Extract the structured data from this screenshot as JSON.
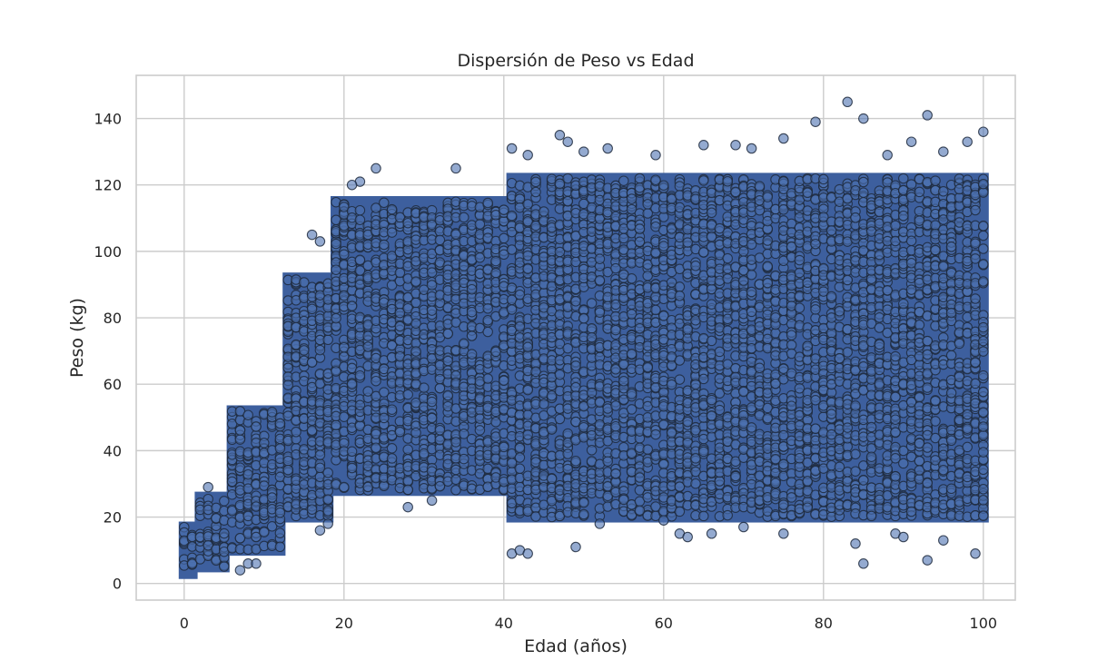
{
  "chart_data": {
    "type": "scatter",
    "title": "Dispersión de Peso vs Edad",
    "xlabel": "Edad (años)",
    "ylabel": "Peso (kg)",
    "xlim": [
      -6,
      104
    ],
    "ylim": [
      -5,
      153
    ],
    "grid": true,
    "legend": "none",
    "colors": {
      "marker_fill": "#4c72b0",
      "marker_edge": "#1f2a3d",
      "dense_core": "#3d5f9e",
      "grid": "#cccccc",
      "text": "#262626"
    },
    "marker_alpha": 0.6,
    "x_ticks": [
      0,
      20,
      40,
      60,
      80,
      100
    ],
    "x_tick_labels": [
      "0",
      "20",
      "40",
      "60",
      "80",
      "100"
    ],
    "y_ticks": [
      0,
      20,
      40,
      60,
      80,
      100,
      120,
      140
    ],
    "y_tick_labels": [
      "0",
      "20",
      "40",
      "60",
      "80",
      "100",
      "120",
      "140"
    ],
    "age_bands": [
      {
        "x_range": [
          0,
          1
        ],
        "y_range": [
          3,
          17
        ]
      },
      {
        "x_range": [
          2,
          5
        ],
        "y_range": [
          5,
          26
        ]
      },
      {
        "x_range": [
          6,
          12
        ],
        "y_range": [
          10,
          52
        ]
      },
      {
        "x_range": [
          13,
          18
        ],
        "y_range": [
          20,
          92
        ]
      },
      {
        "x_range": [
          19,
          40
        ],
        "y_range": [
          28,
          115
        ]
      },
      {
        "x_range": [
          41,
          100
        ],
        "y_range": [
          20,
          122
        ]
      }
    ],
    "outliers": [
      {
        "x": 83,
        "y": 145
      },
      {
        "x": 85,
        "y": 140
      },
      {
        "x": 79,
        "y": 139
      },
      {
        "x": 93,
        "y": 141
      },
      {
        "x": 100,
        "y": 136
      },
      {
        "x": 47,
        "y": 135
      },
      {
        "x": 48,
        "y": 133
      },
      {
        "x": 41,
        "y": 131
      },
      {
        "x": 50,
        "y": 130
      },
      {
        "x": 53,
        "y": 131
      },
      {
        "x": 75,
        "y": 134
      },
      {
        "x": 65,
        "y": 132
      },
      {
        "x": 69,
        "y": 132
      },
      {
        "x": 71,
        "y": 131
      },
      {
        "x": 98,
        "y": 133
      },
      {
        "x": 91,
        "y": 133
      },
      {
        "x": 95,
        "y": 130
      },
      {
        "x": 88,
        "y": 129
      },
      {
        "x": 43,
        "y": 129
      },
      {
        "x": 59,
        "y": 129
      },
      {
        "x": 34,
        "y": 125
      },
      {
        "x": 24,
        "y": 125
      },
      {
        "x": 22,
        "y": 121
      },
      {
        "x": 21,
        "y": 120
      },
      {
        "x": 16,
        "y": 105
      },
      {
        "x": 17,
        "y": 103
      },
      {
        "x": 18,
        "y": 18
      },
      {
        "x": 17,
        "y": 16
      },
      {
        "x": 41,
        "y": 9
      },
      {
        "x": 42,
        "y": 10
      },
      {
        "x": 43,
        "y": 9
      },
      {
        "x": 49,
        "y": 11
      },
      {
        "x": 85,
        "y": 6
      },
      {
        "x": 93,
        "y": 7
      },
      {
        "x": 99,
        "y": 9
      },
      {
        "x": 84,
        "y": 12
      },
      {
        "x": 8,
        "y": 6
      },
      {
        "x": 7,
        "y": 4
      },
      {
        "x": 9,
        "y": 6
      },
      {
        "x": 3,
        "y": 29
      },
      {
        "x": 28,
        "y": 23
      },
      {
        "x": 31,
        "y": 25
      },
      {
        "x": 62,
        "y": 15
      },
      {
        "x": 63,
        "y": 14
      },
      {
        "x": 66,
        "y": 15
      },
      {
        "x": 75,
        "y": 15
      },
      {
        "x": 89,
        "y": 15
      },
      {
        "x": 95,
        "y": 13
      },
      {
        "x": 90,
        "y": 14
      },
      {
        "x": 70,
        "y": 17
      },
      {
        "x": 52,
        "y": 18
      },
      {
        "x": 57,
        "y": 22
      },
      {
        "x": 60,
        "y": 19
      }
    ]
  }
}
